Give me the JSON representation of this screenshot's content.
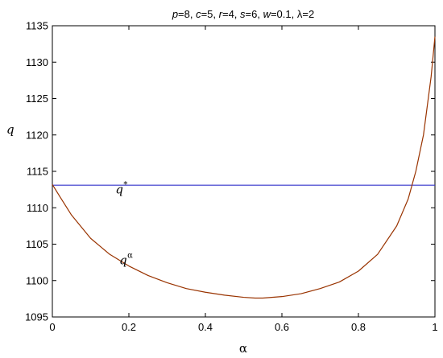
{
  "chart_data": {
    "type": "line",
    "title": "p=8, c=5, r=4, s=6, w=0.1, λ=2",
    "title_parts": [
      {
        "t": "p",
        "i": true
      },
      {
        "t": "=8, ",
        "i": false
      },
      {
        "t": "c",
        "i": true
      },
      {
        "t": "=5, ",
        "i": false
      },
      {
        "t": "r",
        "i": true
      },
      {
        "t": "=4, ",
        "i": false
      },
      {
        "t": "s",
        "i": true
      },
      {
        "t": "=6, ",
        "i": false
      },
      {
        "t": "w",
        "i": true
      },
      {
        "t": "=0.1, ",
        "i": false
      },
      {
        "t": "λ",
        "i": false
      },
      {
        "t": "=2",
        "i": false
      }
    ],
    "xlabel": "α",
    "ylabel": "q",
    "xlim": [
      0,
      1
    ],
    "ylim": [
      1095,
      1135
    ],
    "xticks": [
      "0",
      "0.2",
      "0.4",
      "0.6",
      "0.8",
      "1"
    ],
    "yticks": [
      "1095",
      "1100",
      "1105",
      "1110",
      "1115",
      "1120",
      "1125",
      "1130",
      "1135"
    ],
    "grid": false,
    "series": [
      {
        "name": "q*",
        "color": "#3333cc",
        "x": [
          0,
          1
        ],
        "y": [
          1113.1,
          1113.1
        ]
      },
      {
        "name": "qα",
        "color": "#993300",
        "x": [
          0,
          0.02,
          0.05,
          0.1,
          0.15,
          0.2,
          0.25,
          0.3,
          0.35,
          0.4,
          0.45,
          0.5,
          0.53,
          0.55,
          0.6,
          0.65,
          0.7,
          0.75,
          0.8,
          0.85,
          0.9,
          0.93,
          0.95,
          0.97,
          0.98,
          0.99,
          1.0
        ],
        "y": [
          1113.2,
          1111.5,
          1109.0,
          1105.8,
          1103.6,
          1102.0,
          1100.7,
          1099.7,
          1098.9,
          1098.4,
          1098.0,
          1097.7,
          1097.6,
          1097.6,
          1097.8,
          1098.2,
          1098.9,
          1099.8,
          1101.3,
          1103.6,
          1107.5,
          1111.2,
          1115.0,
          1120.0,
          1124.0,
          1128.0,
          1133.5
        ]
      }
    ],
    "annotations": [
      {
        "base": "q",
        "sup": "*",
        "x": 0.165,
        "y": 1112.5
      },
      {
        "base": "q",
        "sup": "α",
        "x": 0.175,
        "y": 1102.8
      }
    ]
  }
}
